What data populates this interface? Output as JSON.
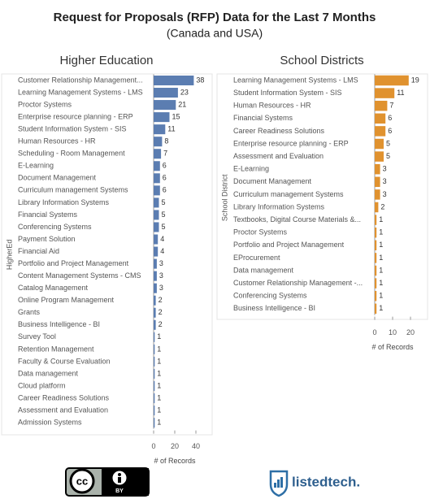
{
  "header": {
    "title": "Request for Proposals (RFP) Data for the Last 7 Months",
    "subtitle": "(Canada and USA)"
  },
  "chart_data": [
    {
      "type": "hbar",
      "title": "Higher Education",
      "y_label": "HigherEd",
      "x_label": "# of Records",
      "color": "#5b7db1",
      "categories": [
        "Customer Relationship Management...",
        "Learning Management Systems - LMS",
        "Proctor Systems",
        "Enterprise resource planning - ERP",
        "Student Information System - SIS",
        "Human Resources - HR",
        "Scheduling - Room Management",
        "E-Learning",
        "Document Management",
        "Curriculum management Systems",
        "Library Information Systems",
        "Financial Systems",
        "Conferencing Systems",
        "Payment Solution",
        "Financial Aid",
        "Portfolio and Project Management",
        "Content Management Systems - CMS",
        "Catalog Management",
        "Online Program Management",
        "Grants",
        "Business Intelligence - BI",
        "Survey Tool",
        "Retention Management",
        "Faculty & Course Evaluation",
        "Data management",
        "Cloud platform",
        "Career Readiness Solutions",
        "Assessment and Evaluation",
        "Admission Systems"
      ],
      "values": [
        38,
        23,
        21,
        15,
        11,
        8,
        7,
        6,
        6,
        6,
        5,
        5,
        5,
        4,
        4,
        3,
        3,
        3,
        2,
        2,
        2,
        1,
        1,
        1,
        1,
        1,
        1,
        1,
        1
      ],
      "xlim": [
        0,
        40
      ],
      "xticks": [
        0,
        20,
        40
      ]
    },
    {
      "type": "hbar",
      "title": "School Districts",
      "y_label": "School District",
      "x_label": "# of Records",
      "color": "#e0922f",
      "categories": [
        "Learning Management Systems - LMS",
        "Student Information System - SIS",
        "Human Resources - HR",
        "Financial Systems",
        "Career Readiness Solutions",
        "Enterprise resource planning - ERP",
        "Assessment and Evaluation",
        "E-Learning",
        "Document Management",
        "Curriculum management Systems",
        "Library Information Systems",
        "Textbooks, Digital Course Materials &...",
        "Proctor Systems",
        "Portfolio and Project Management",
        "EProcurement",
        "Data management",
        "Customer Relationship Management -...",
        "Conferencing Systems",
        "Business Intelligence - BI"
      ],
      "values": [
        19,
        11,
        7,
        6,
        6,
        5,
        5,
        3,
        3,
        3,
        2,
        1,
        1,
        1,
        1,
        1,
        1,
        1,
        1
      ],
      "xlim": [
        0,
        20
      ],
      "xticks": [
        0,
        10,
        20
      ]
    }
  ],
  "footer": {
    "license": "cc",
    "license_by": "BY",
    "brand": "listedtech."
  }
}
